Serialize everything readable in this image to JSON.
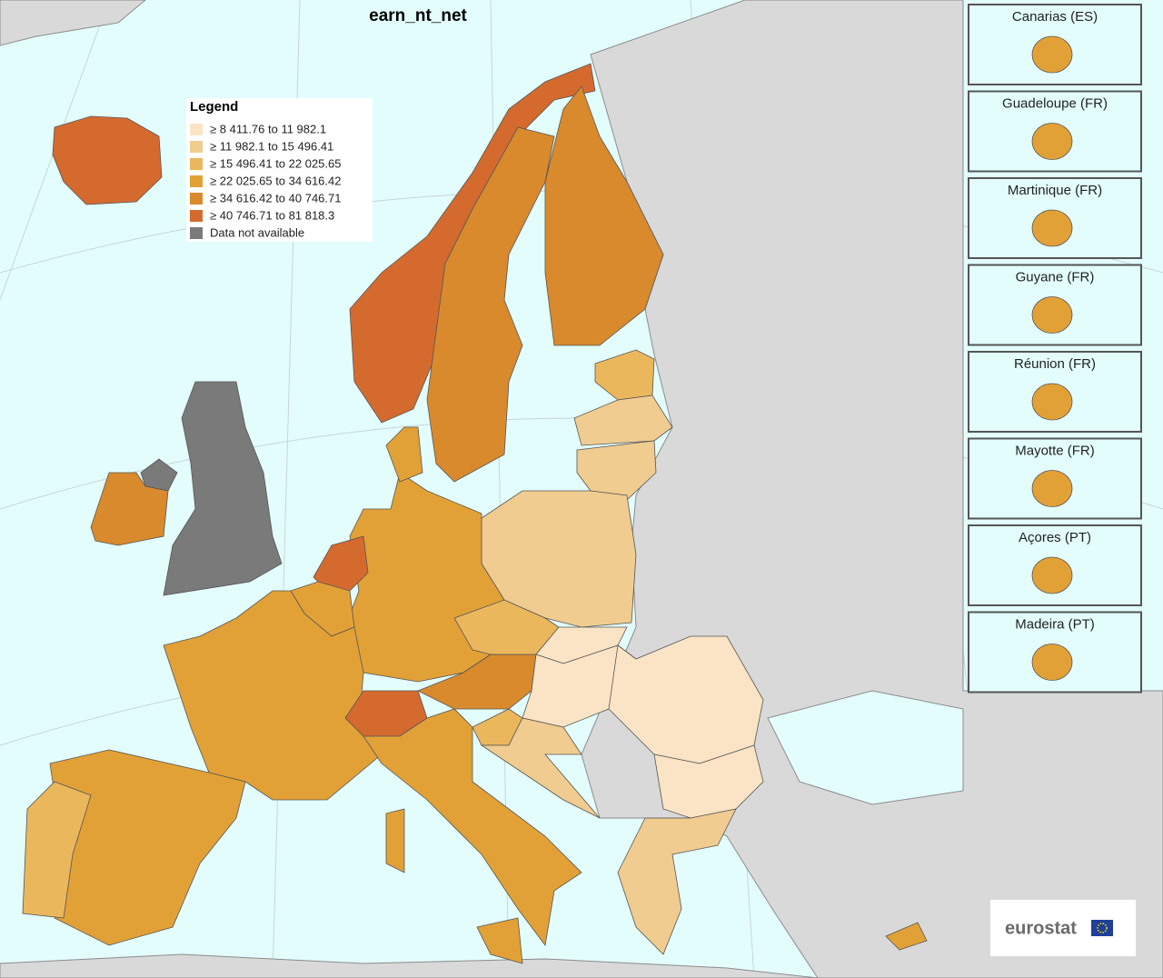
{
  "title": "earn_nt_net",
  "legend": {
    "title": "Legend",
    "items": [
      {
        "label": "≥ 8 411.76 to 11 982.1",
        "color": "#fbe4c5"
      },
      {
        "label": "≥ 11 982.1 to 15 496.41",
        "color": "#f0cc91"
      },
      {
        "label": "≥ 15 496.41 to 22 025.65",
        "color": "#ebb75d"
      },
      {
        "label": "≥ 22 025.65 to 34 616.42",
        "color": "#e2a137"
      },
      {
        "label": "≥ 34 616.42 to 40 746.71",
        "color": "#d98a2d"
      },
      {
        "label": "≥ 40 746.71 to 81 818.3",
        "color": "#d56a2f"
      },
      {
        "label": "Data not available",
        "color": "#7a7a7a"
      }
    ]
  },
  "insets": [
    {
      "label": "Canarias (ES)"
    },
    {
      "label": "Guadeloupe (FR)"
    },
    {
      "label": "Martinique (FR)"
    },
    {
      "label": "Guyane (FR)"
    },
    {
      "label": "Réunion (FR)"
    },
    {
      "label": "Mayotte (FR)"
    },
    {
      "label": "Açores (PT)"
    },
    {
      "label": "Madeira (PT)"
    }
  ],
  "logo": "eurostat"
}
